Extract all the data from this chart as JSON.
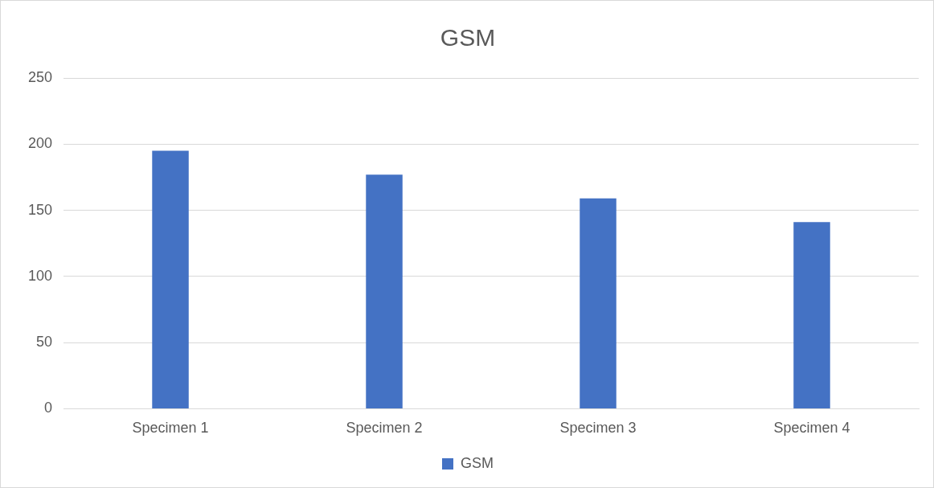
{
  "chart_data": {
    "type": "bar",
    "title": "GSM",
    "categories": [
      "Specimen 1",
      "Specimen 2",
      "Specimen 3",
      "Specimen 4"
    ],
    "series": [
      {
        "name": "GSM",
        "color": "#4472c4",
        "values": [
          195,
          177,
          159,
          141
        ]
      }
    ],
    "ylim": [
      0,
      250
    ],
    "yticks": [
      0,
      50,
      100,
      150,
      200,
      250
    ],
    "grid": "y",
    "legend": "bottom"
  }
}
